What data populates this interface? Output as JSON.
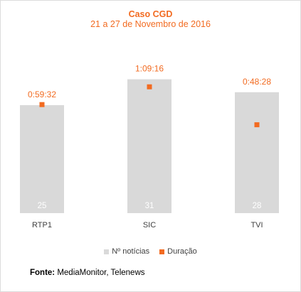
{
  "chart_data": {
    "type": "bar",
    "title": "Caso CGD",
    "subtitle": "21 a 27 de Novembro de 2016",
    "categories": [
      "RTP1",
      "SIC",
      "TVI"
    ],
    "series": [
      {
        "name": "Nº notícias",
        "type": "bar",
        "color": "#d9d9d9",
        "values": [
          25,
          31,
          28
        ],
        "value_labels": [
          "25",
          "31",
          "28"
        ]
      },
      {
        "name": "Duração",
        "type": "marker",
        "color": "#f26b21",
        "values_seconds": [
          3572,
          4156,
          2908
        ],
        "value_labels": [
          "0:59:32",
          "1:09:16",
          "0:48:28"
        ]
      }
    ],
    "ylim_count": [
      0,
      38
    ],
    "ylim_duration_seconds": [
      0,
      5400
    ],
    "grid": false,
    "legend_position": "bottom"
  },
  "source": {
    "label": "Fonte:",
    "text": " MediaMonitor, Telenews"
  }
}
